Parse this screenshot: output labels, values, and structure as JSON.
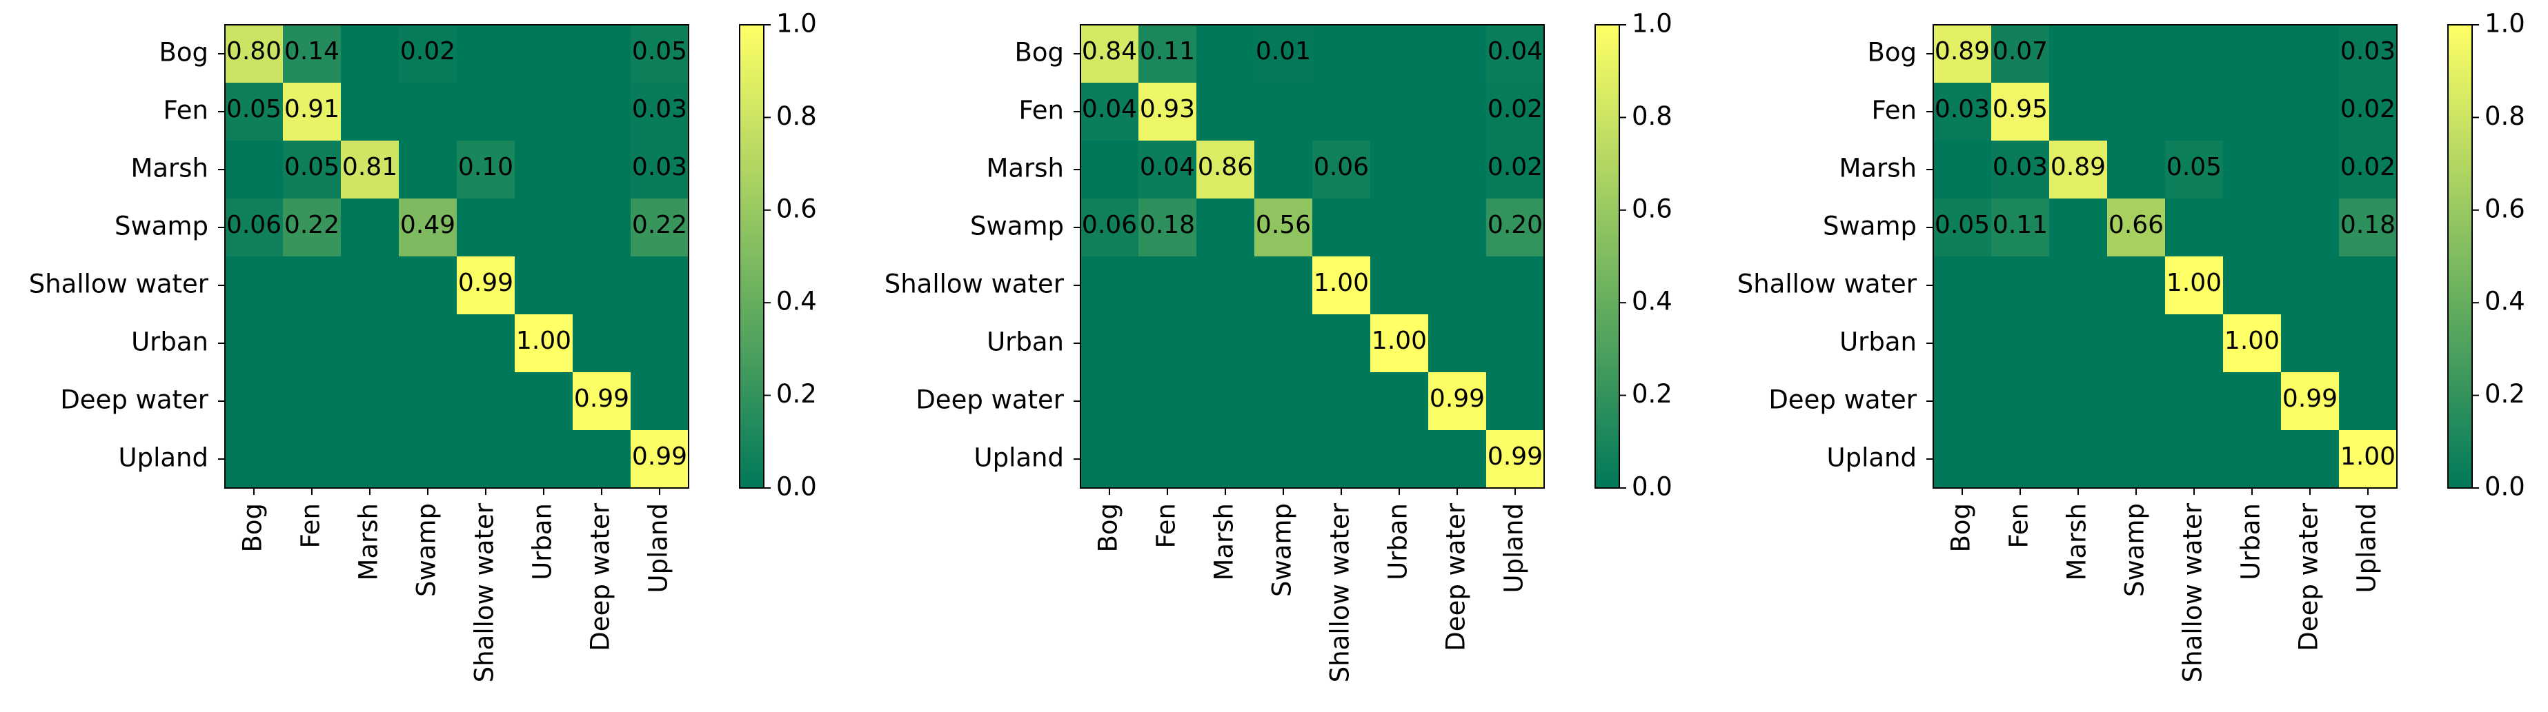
{
  "chart_data": [
    {
      "type": "heatmap",
      "title": "",
      "xlabel": "",
      "ylabel": "",
      "rows": [
        "Bog",
        "Fen",
        "Marsh",
        "Swamp",
        "Shallow water",
        "Urban",
        "Deep water",
        "Upland"
      ],
      "columns": [
        "Bog",
        "Fen",
        "Marsh",
        "Swamp",
        "Shallow water",
        "Urban",
        "Deep water",
        "Upland"
      ],
      "values": [
        [
          0.8,
          0.14,
          0.0,
          0.02,
          0.0,
          0.0,
          0.0,
          0.05
        ],
        [
          0.05,
          0.91,
          0.0,
          0.0,
          0.0,
          0.0,
          0.0,
          0.03
        ],
        [
          0.0,
          0.05,
          0.81,
          0.0,
          0.1,
          0.0,
          0.0,
          0.03
        ],
        [
          0.06,
          0.22,
          0.0,
          0.49,
          0.0,
          0.0,
          0.0,
          0.22
        ],
        [
          0.0,
          0.0,
          0.0,
          0.0,
          0.99,
          0.0,
          0.0,
          0.0
        ],
        [
          0.0,
          0.0,
          0.0,
          0.0,
          0.0,
          1.0,
          0.0,
          0.0
        ],
        [
          0.0,
          0.0,
          0.0,
          0.0,
          0.0,
          0.0,
          0.99,
          0.0
        ],
        [
          0.0,
          0.0,
          0.0,
          0.0,
          0.0,
          0.0,
          0.0,
          0.99
        ]
      ],
      "cell_labels": [
        [
          "0.80",
          "0.14",
          "",
          "0.02",
          "",
          "",
          "",
          "0.05"
        ],
        [
          "0.05",
          "0.91",
          "",
          "",
          "",
          "",
          "",
          "0.03"
        ],
        [
          "",
          "0.05",
          "0.81",
          "",
          "0.10",
          "",
          "",
          "0.03"
        ],
        [
          "0.06",
          "0.22",
          "",
          "0.49",
          "",
          "",
          "",
          "0.22"
        ],
        [
          "",
          "",
          "",
          "",
          "0.99",
          "",
          "",
          ""
        ],
        [
          "",
          "",
          "",
          "",
          "",
          "1.00",
          "",
          ""
        ],
        [
          "",
          "",
          "",
          "",
          "",
          "",
          "0.99",
          ""
        ],
        [
          "",
          "",
          "",
          "",
          "",
          "",
          "",
          "0.99"
        ]
      ],
      "colorbar": {
        "range": [
          0.0,
          1.0
        ],
        "ticks": [
          "0.0",
          "0.2",
          "0.4",
          "0.6",
          "0.8",
          "1.0"
        ]
      }
    },
    {
      "type": "heatmap",
      "title": "",
      "xlabel": "",
      "ylabel": "",
      "rows": [
        "Bog",
        "Fen",
        "Marsh",
        "Swamp",
        "Shallow water",
        "Urban",
        "Deep water",
        "Upland"
      ],
      "columns": [
        "Bog",
        "Fen",
        "Marsh",
        "Swamp",
        "Shallow water",
        "Urban",
        "Deep water",
        "Upland"
      ],
      "values": [
        [
          0.84,
          0.11,
          0.0,
          0.01,
          0.0,
          0.0,
          0.0,
          0.04
        ],
        [
          0.04,
          0.93,
          0.0,
          0.0,
          0.0,
          0.0,
          0.0,
          0.02
        ],
        [
          0.0,
          0.04,
          0.86,
          0.0,
          0.06,
          0.0,
          0.0,
          0.02
        ],
        [
          0.06,
          0.18,
          0.0,
          0.56,
          0.0,
          0.0,
          0.0,
          0.2
        ],
        [
          0.0,
          0.0,
          0.0,
          0.0,
          1.0,
          0.0,
          0.0,
          0.0
        ],
        [
          0.0,
          0.0,
          0.0,
          0.0,
          0.0,
          1.0,
          0.0,
          0.0
        ],
        [
          0.0,
          0.0,
          0.0,
          0.0,
          0.0,
          0.0,
          0.99,
          0.0
        ],
        [
          0.0,
          0.0,
          0.0,
          0.0,
          0.0,
          0.0,
          0.0,
          0.99
        ]
      ],
      "cell_labels": [
        [
          "0.84",
          "0.11",
          "",
          "0.01",
          "",
          "",
          "",
          "0.04"
        ],
        [
          "0.04",
          "0.93",
          "",
          "",
          "",
          "",
          "",
          "0.02"
        ],
        [
          "",
          "0.04",
          "0.86",
          "",
          "0.06",
          "",
          "",
          "0.02"
        ],
        [
          "0.06",
          "0.18",
          "",
          "0.56",
          "",
          "",
          "",
          "0.20"
        ],
        [
          "",
          "",
          "",
          "",
          "1.00",
          "",
          "",
          ""
        ],
        [
          "",
          "",
          "",
          "",
          "",
          "1.00",
          "",
          ""
        ],
        [
          "",
          "",
          "",
          "",
          "",
          "",
          "0.99",
          ""
        ],
        [
          "",
          "",
          "",
          "",
          "",
          "",
          "",
          "0.99"
        ]
      ],
      "colorbar": {
        "range": [
          0.0,
          1.0
        ],
        "ticks": [
          "0.0",
          "0.2",
          "0.4",
          "0.6",
          "0.8",
          "1.0"
        ]
      }
    },
    {
      "type": "heatmap",
      "title": "",
      "xlabel": "",
      "ylabel": "",
      "rows": [
        "Bog",
        "Fen",
        "Marsh",
        "Swamp",
        "Shallow water",
        "Urban",
        "Deep water",
        "Upland"
      ],
      "columns": [
        "Bog",
        "Fen",
        "Marsh",
        "Swamp",
        "Shallow water",
        "Urban",
        "Deep water",
        "Upland"
      ],
      "values": [
        [
          0.89,
          0.07,
          0.0,
          0.0,
          0.0,
          0.0,
          0.0,
          0.03
        ],
        [
          0.03,
          0.95,
          0.0,
          0.0,
          0.0,
          0.0,
          0.0,
          0.02
        ],
        [
          0.0,
          0.03,
          0.89,
          0.0,
          0.05,
          0.0,
          0.0,
          0.02
        ],
        [
          0.05,
          0.11,
          0.0,
          0.66,
          0.0,
          0.0,
          0.0,
          0.18
        ],
        [
          0.0,
          0.0,
          0.0,
          0.0,
          1.0,
          0.0,
          0.0,
          0.0
        ],
        [
          0.0,
          0.0,
          0.0,
          0.0,
          0.0,
          1.0,
          0.0,
          0.0
        ],
        [
          0.0,
          0.0,
          0.0,
          0.0,
          0.0,
          0.0,
          0.99,
          0.0
        ],
        [
          0.0,
          0.0,
          0.0,
          0.0,
          0.0,
          0.0,
          0.0,
          1.0
        ]
      ],
      "cell_labels": [
        [
          "0.89",
          "0.07",
          "",
          "",
          "",
          "",
          "",
          "0.03"
        ],
        [
          "0.03",
          "0.95",
          "",
          "",
          "",
          "",
          "",
          "0.02"
        ],
        [
          "",
          "0.03",
          "0.89",
          "",
          "0.05",
          "",
          "",
          "0.02"
        ],
        [
          "0.05",
          "0.11",
          "",
          "0.66",
          "",
          "",
          "",
          "0.18"
        ],
        [
          "",
          "",
          "",
          "",
          "1.00",
          "",
          "",
          ""
        ],
        [
          "",
          "",
          "",
          "",
          "",
          "1.00",
          "",
          ""
        ],
        [
          "",
          "",
          "",
          "",
          "",
          "",
          "0.99",
          ""
        ],
        [
          "",
          "",
          "",
          "",
          "",
          "",
          "",
          "1.00"
        ]
      ],
      "colorbar": {
        "range": [
          0.0,
          1.0
        ],
        "ticks": [
          "0.0",
          "0.2",
          "0.4",
          "0.6",
          "0.8",
          "1.0"
        ]
      }
    }
  ],
  "colormap": {
    "low": "#00785a",
    "high": "#ffff66"
  }
}
